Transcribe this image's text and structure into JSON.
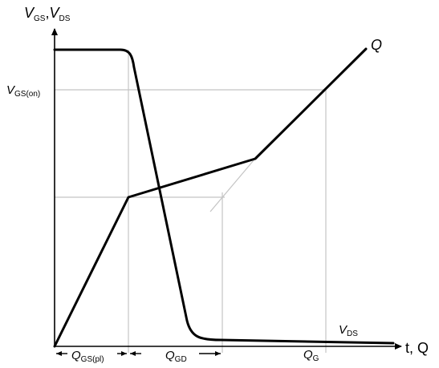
{
  "axes": {
    "y_label_main_1": "V",
    "y_label_sub_1": "GS",
    "y_label_sep": ",",
    "y_label_main_2": "V",
    "y_label_sub_2": "DS",
    "x_label": "t, Q"
  },
  "curves": {
    "q_label": "Q",
    "vds_label_main": "V",
    "vds_label_sub": "DS"
  },
  "levels": {
    "vgs_on_main": "V",
    "vgs_on_sub": "GS(on)"
  },
  "intervals": {
    "qgs_pl_main": "Q",
    "qgs_pl_sub": "GS(pl)",
    "qgd_main": "Q",
    "qgd_sub": "GD",
    "qg_main": "Q",
    "qg_sub": "G"
  },
  "colors": {
    "curve": "#000000",
    "guide": "#c4c4c4"
  }
}
